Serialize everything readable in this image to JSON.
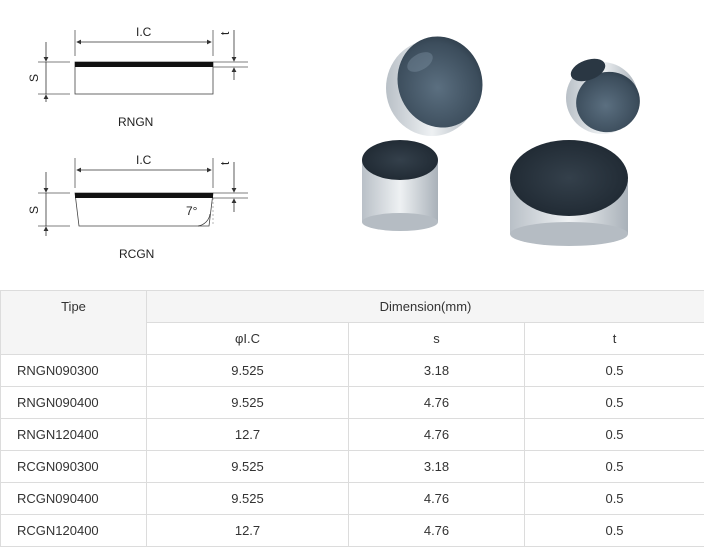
{
  "diagram": {
    "rngn": {
      "ic_label": "I.C",
      "t_label": "t",
      "s_label": "S",
      "name": "RNGN"
    },
    "rcgn": {
      "ic_label": "I.C",
      "t_label": "t",
      "s_label": "S",
      "angle_label": "7°",
      "name": "RCGN"
    }
  },
  "photo": {
    "alt": "pcd-inserts-photo"
  },
  "table": {
    "header_tipe": "Tipe",
    "header_dimension": "Dimension(mm)",
    "col_ic": "φI.C",
    "col_s": "s",
    "col_t": "t",
    "rows": [
      {
        "tipe": "RNGN090300",
        "ic": "9.525",
        "s": "3.18",
        "t": "0.5"
      },
      {
        "tipe": "RNGN090400",
        "ic": "9.525",
        "s": "4.76",
        "t": "0.5"
      },
      {
        "tipe": "RNGN120400",
        "ic": "12.7",
        "s": "4.76",
        "t": "0.5"
      },
      {
        "tipe": "RCGN090300",
        "ic": "9.525",
        "s": "3.18",
        "t": "0.5"
      },
      {
        "tipe": "RCGN090400",
        "ic": "9.525",
        "s": "4.76",
        "t": "0.5"
      },
      {
        "tipe": "RCGN120400",
        "ic": "12.7",
        "s": "4.76",
        "t": "0.5"
      }
    ]
  }
}
